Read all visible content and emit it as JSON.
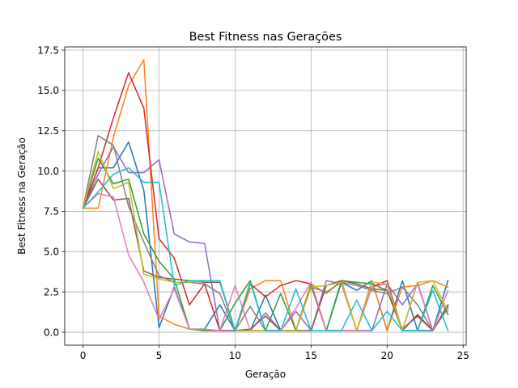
{
  "chart_data": {
    "type": "line",
    "title": "Best Fitness nas Gerações",
    "xlabel": "Geração",
    "ylabel": "Best Fitness na Geração",
    "xlim": [
      -1.2,
      25.2
    ],
    "ylim": [
      -0.8,
      17.7
    ],
    "xticks": [
      0,
      5,
      10,
      15,
      20,
      25
    ],
    "xtick_labels": [
      "0",
      "5",
      "10",
      "15",
      "20",
      "25"
    ],
    "yticks": [
      0,
      2.5,
      5,
      7.5,
      10,
      12.5,
      15,
      17.5
    ],
    "ytick_labels": [
      "0.0",
      "2.5",
      "5.0",
      "7.5",
      "10.0",
      "12.5",
      "15.0",
      "17.5"
    ],
    "grid": true,
    "x": [
      0,
      1,
      2,
      3,
      4,
      5,
      6,
      7,
      8,
      9,
      10,
      11,
      12,
      13,
      14,
      15,
      16,
      17,
      18,
      19,
      20,
      21,
      22,
      23,
      24
    ],
    "series": [
      {
        "color": "#1f77b4",
        "values": [
          7.7,
          10.2,
          10.2,
          11.8,
          8.8,
          0.3,
          2.8,
          0.2,
          0.2,
          1.7,
          0.1,
          0.1,
          2.3,
          0.1,
          0.1,
          3.0,
          0.1,
          3.1,
          2.6,
          3.2,
          0.1,
          3.2,
          0.1,
          0.1,
          3.2
        ]
      },
      {
        "color": "#ff7f0e",
        "values": [
          7.7,
          7.7,
          12.1,
          15.3,
          16.9,
          1.0,
          0.5,
          0.2,
          0.1,
          0.1,
          0.1,
          2.7,
          3.2,
          3.2,
          0.1,
          3.0,
          2.4,
          3.2,
          0.1,
          3.2,
          0.1,
          2.8,
          2.9,
          3.2,
          2.8
        ]
      },
      {
        "color": "#2ca02c",
        "values": [
          7.7,
          10.8,
          9.2,
          9.5,
          6.1,
          4.4,
          3.3,
          0.2,
          0.1,
          0.1,
          1.8,
          3.2,
          0.1,
          2.4,
          0.1,
          2.9,
          0.1,
          3.2,
          3.1,
          3.0,
          2.6,
          0.1,
          0.1,
          2.9,
          1.1
        ]
      },
      {
        "color": "#d62728",
        "values": [
          7.7,
          10.2,
          13.3,
          16.1,
          13.9,
          5.8,
          4.6,
          1.7,
          3.0,
          0.1,
          0.1,
          3.0,
          2.2,
          2.9,
          3.2,
          3.0,
          0.1,
          0.1,
          0.1,
          2.8,
          3.2,
          0.1,
          1.1,
          0.1,
          1.7
        ]
      },
      {
        "color": "#9467bd",
        "values": [
          7.7,
          9.8,
          11.5,
          9.9,
          9.9,
          10.7,
          6.1,
          5.6,
          5.5,
          0.1,
          0.1,
          0.1,
          1.2,
          0.1,
          1.3,
          0.1,
          3.2,
          3.0,
          0.1,
          0.1,
          3.0,
          1.7,
          3.0,
          0.1,
          1.6
        ]
      },
      {
        "color": "#8c564b",
        "values": [
          7.7,
          9.5,
          8.2,
          8.3,
          3.8,
          3.4,
          3.3,
          3.2,
          3.1,
          3.1,
          0.1,
          0.2,
          1.0,
          0.1,
          0.1,
          0.1,
          2.9,
          3.2,
          3.0,
          2.7,
          2.6,
          0.2,
          1.0,
          0.1,
          1.7
        ]
      },
      {
        "color": "#e377c2",
        "values": [
          7.7,
          8.6,
          8.4,
          4.8,
          3.1,
          0.8,
          2.7,
          0.2,
          0.2,
          0.1,
          2.9,
          0.1,
          0.1,
          0.1,
          1.5,
          3.1,
          0.1,
          0.1,
          0.1,
          2.8,
          3.0,
          0.1,
          3.1,
          0.1,
          2.6
        ]
      },
      {
        "color": "#7f7f7f",
        "values": [
          7.7,
          12.2,
          11.6,
          7.8,
          5.6,
          3.5,
          3.1,
          3.1,
          3.0,
          2.4,
          0.1,
          1.6,
          0.1,
          0.1,
          0.1,
          2.8,
          2.5,
          3.1,
          2.9,
          2.6,
          2.4,
          2.8,
          1.7,
          0.1,
          1.5
        ]
      },
      {
        "color": "#bcbd22",
        "values": [
          7.7,
          11.2,
          8.9,
          9.3,
          3.6,
          3.3,
          3.1,
          3.1,
          3.2,
          3.2,
          0.1,
          0.1,
          0.1,
          0.1,
          0.1,
          2.8,
          2.9,
          3.1,
          0.1,
          3.1,
          3.0,
          0.1,
          3.1,
          3.2,
          1.3
        ]
      },
      {
        "color": "#17becf",
        "values": [
          7.7,
          8.7,
          9.8,
          10.2,
          9.3,
          9.3,
          2.9,
          3.2,
          3.2,
          3.2,
          0.1,
          3.1,
          0.1,
          0.1,
          2.7,
          0.1,
          0.1,
          0.1,
          2.0,
          0.1,
          1.3,
          0.1,
          0.1,
          2.6,
          0.1
        ]
      }
    ]
  }
}
